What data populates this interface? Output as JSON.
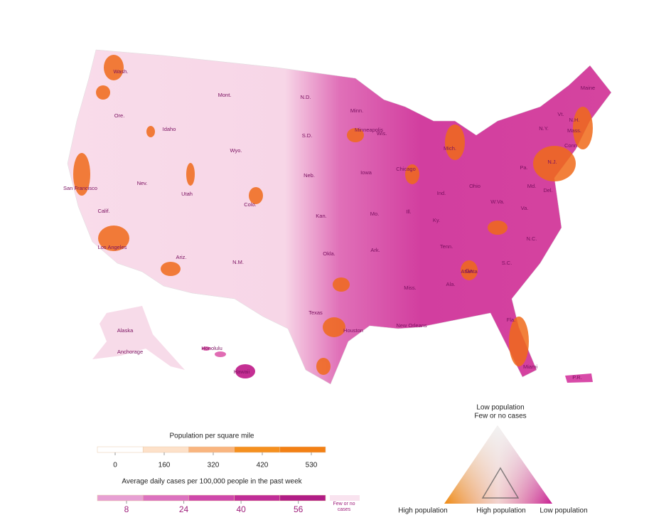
{
  "map": {
    "labels": [
      "Wash.",
      "Ore.",
      "Idaho",
      "Mont.",
      "Wyo.",
      "N.D.",
      "S.D.",
      "Minn.",
      "Neb.",
      "Nev.",
      "Utah",
      "Colo.",
      "Calif.",
      "San Francisco",
      "Los Angeles",
      "Ariz.",
      "N.M.",
      "Kan.",
      "Okla.",
      "Texas",
      "Houston",
      "Wis.",
      "Minneapolis",
      "Iowa",
      "Chicago",
      "Mich.",
      "Ill.",
      "Ind.",
      "Ohio",
      "Ky.",
      "Mo.",
      "Ark.",
      "Tenn.",
      "Miss.",
      "Ala.",
      "New Orleans",
      "Ga.",
      "S.C.",
      "N.C.",
      "Va.",
      "W.Va.",
      "Pa.",
      "N.Y.",
      "Vt.",
      "N.H.",
      "Maine",
      "Mass.",
      "Conn.",
      "N.J.",
      "Md.",
      "Del.",
      "Atlanta",
      "Fla.",
      "Miami",
      "Alaska",
      "Anchorage",
      "Honolulu",
      "Hawaii",
      "P.R."
    ]
  },
  "legend": {
    "population": {
      "title": "Population per square mile",
      "ticks": [
        0,
        160,
        320,
        420,
        530
      ],
      "colors": [
        "#ffffff",
        "#fde1c9",
        "#f9b57f",
        "#f5901f",
        "#f38014"
      ]
    },
    "cases": {
      "title": "Average daily cases per 100,000 people in the past week",
      "ticks": [
        8,
        24,
        40,
        56
      ],
      "colors": [
        "#e7a0d3",
        "#dc72bf",
        "#cf48ab",
        "#c02d97",
        "#b11d86"
      ],
      "none_color": "#f9e3ef",
      "none_label": "Few or no cases"
    }
  },
  "triangle": {
    "top": "Low population",
    "top_sub": "Few or no cases",
    "left": "High population",
    "middle": "High population",
    "right": "Low population"
  }
}
